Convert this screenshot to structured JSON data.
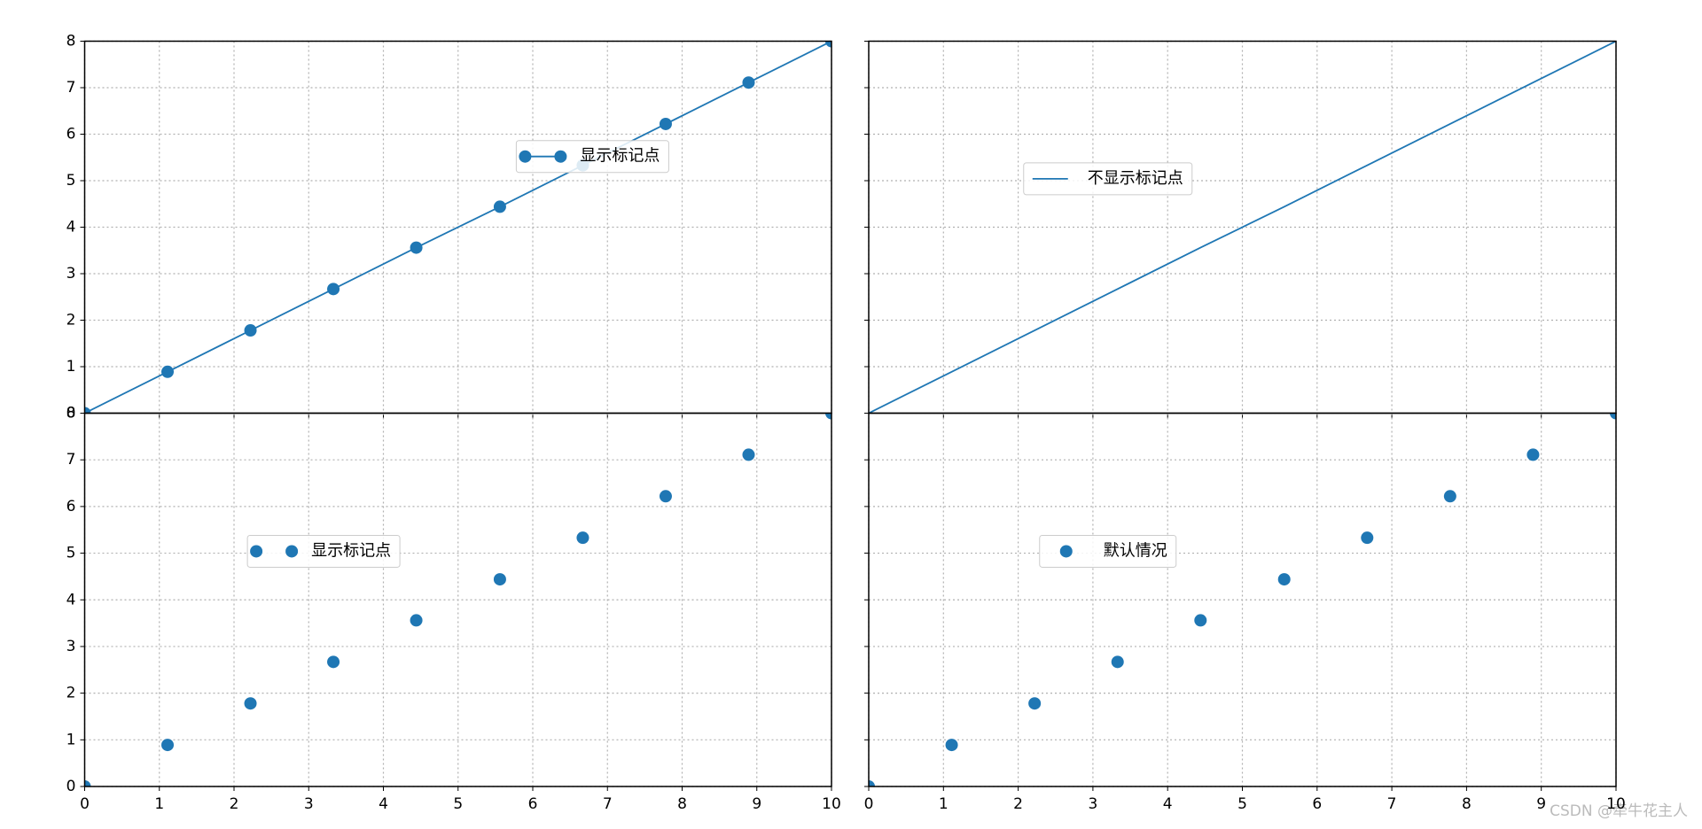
{
  "chart_data": [
    {
      "type": "line",
      "x": [
        0,
        1.11,
        2.22,
        3.33,
        4.44,
        5.56,
        6.67,
        7.78,
        8.89,
        10
      ],
      "series": [
        {
          "name": "显示标记点",
          "color": "#1f77b4",
          "values": [
            0,
            0.89,
            1.78,
            2.67,
            3.56,
            4.44,
            5.33,
            6.22,
            7.11,
            8
          ],
          "marker": true,
          "line": true
        }
      ],
      "xlim": [
        0,
        10
      ],
      "ylim": [
        0,
        8
      ],
      "xticks": [
        0,
        1,
        2,
        3,
        4,
        5,
        6,
        7,
        8,
        9,
        10
      ],
      "yticks": [
        0,
        1,
        2,
        3,
        4,
        5,
        6,
        7,
        8
      ],
      "grid": true,
      "legend_loc": "upper right",
      "legend_numpoints": 2,
      "show_xtick_labels": false,
      "show_ytick_labels": true
    },
    {
      "type": "line",
      "x": [
        0,
        1.11,
        2.22,
        3.33,
        4.44,
        5.56,
        6.67,
        7.78,
        8.89,
        10
      ],
      "series": [
        {
          "name": "不显示标记点",
          "color": "#1f77b4",
          "values": [
            0,
            0.89,
            1.78,
            2.67,
            3.56,
            4.44,
            5.33,
            6.22,
            7.11,
            8
          ],
          "marker": false,
          "line": true
        }
      ],
      "xlim": [
        0,
        10
      ],
      "ylim": [
        0,
        8
      ],
      "xticks": [
        0,
        1,
        2,
        3,
        4,
        5,
        6,
        7,
        8,
        9,
        10
      ],
      "yticks": [
        0,
        1,
        2,
        3,
        4,
        5,
        6,
        7,
        8
      ],
      "grid": true,
      "legend_loc": "center left",
      "legend_numpoints": 1,
      "show_xtick_labels": false,
      "show_ytick_labels": false
    },
    {
      "type": "line",
      "x": [
        0,
        1.11,
        2.22,
        3.33,
        4.44,
        5.56,
        6.67,
        7.78,
        8.89,
        10
      ],
      "series": [
        {
          "name": "显示标记点",
          "color": "#1f77b4",
          "values": [
            0,
            0.89,
            1.78,
            2.67,
            3.56,
            4.44,
            5.33,
            6.22,
            7.11,
            8
          ],
          "marker": true,
          "line": false
        }
      ],
      "xlim": [
        0,
        10
      ],
      "ylim": [
        0,
        8
      ],
      "xticks": [
        0,
        1,
        2,
        3,
        4,
        5,
        6,
        7,
        8,
        9,
        10
      ],
      "yticks": [
        0,
        1,
        2,
        3,
        4,
        5,
        6,
        7,
        8
      ],
      "grid": true,
      "legend_loc": "center left",
      "legend_numpoints": 2,
      "show_xtick_labels": true,
      "show_ytick_labels": true
    },
    {
      "type": "line",
      "x": [
        0,
        1.11,
        2.22,
        3.33,
        4.44,
        5.56,
        6.67,
        7.78,
        8.89,
        10
      ],
      "series": [
        {
          "name": "默认情况",
          "color": "#1f77b4",
          "values": [
            0,
            0.89,
            1.78,
            2.67,
            3.56,
            4.44,
            5.33,
            6.22,
            7.11,
            8
          ],
          "marker": true,
          "line": false
        }
      ],
      "xlim": [
        0,
        10
      ],
      "ylim": [
        0,
        8
      ],
      "xticks": [
        0,
        1,
        2,
        3,
        4,
        5,
        6,
        7,
        8,
        9,
        10
      ],
      "yticks": [
        0,
        1,
        2,
        3,
        4,
        5,
        6,
        7,
        8
      ],
      "grid": true,
      "legend_loc": "center left",
      "legend_numpoints": 1,
      "show_xtick_labels": true,
      "show_ytick_labels": false
    }
  ],
  "watermark": "CSDN @牵牛花主人"
}
